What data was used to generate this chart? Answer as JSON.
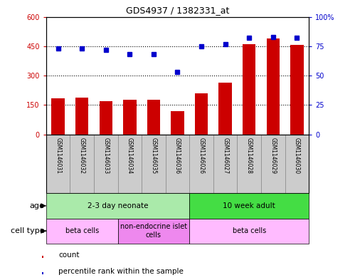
{
  "title": "GDS4937 / 1382331_at",
  "samples": [
    "GSM1146031",
    "GSM1146032",
    "GSM1146033",
    "GSM1146034",
    "GSM1146035",
    "GSM1146036",
    "GSM1146026",
    "GSM1146027",
    "GSM1146028",
    "GSM1146029",
    "GSM1146030"
  ],
  "counts": [
    185,
    188,
    168,
    178,
    175,
    120,
    210,
    265,
    460,
    490,
    455
  ],
  "percentiles": [
    73,
    73,
    72,
    68,
    68,
    53,
    75,
    77,
    82,
    83,
    82
  ],
  "bar_color": "#cc0000",
  "dot_color": "#0000cc",
  "ylim_left": [
    0,
    600
  ],
  "ylim_right": [
    0,
    100
  ],
  "yticks_left": [
    0,
    150,
    300,
    450,
    600
  ],
  "yticks_right": [
    0,
    25,
    50,
    75,
    100
  ],
  "ytick_labels_left": [
    "0",
    "150",
    "300",
    "450",
    "600"
  ],
  "ytick_labels_right": [
    "0",
    "25",
    "50",
    "75",
    "100%"
  ],
  "age_groups": [
    {
      "label": "2-3 day neonate",
      "start": 0,
      "end": 6,
      "color": "#aaeaaa"
    },
    {
      "label": "10 week adult",
      "start": 6,
      "end": 11,
      "color": "#44dd44"
    }
  ],
  "cell_type_groups": [
    {
      "label": "beta cells",
      "start": 0,
      "end": 3,
      "color": "#ffbbff"
    },
    {
      "label": "non-endocrine islet\ncells",
      "start": 3,
      "end": 6,
      "color": "#ee88ee"
    },
    {
      "label": "beta cells",
      "start": 6,
      "end": 11,
      "color": "#ffbbff"
    }
  ],
  "sample_box_color": "#cccccc",
  "sample_box_edge": "#888888",
  "legend_count_color": "#cc0000",
  "legend_dot_color": "#0000cc",
  "legend_count_label": "count",
  "legend_dot_label": "percentile rank within the sample",
  "age_label": "age",
  "cell_type_label": "cell type",
  "background_color": "#ffffff",
  "fig_width": 4.99,
  "fig_height": 3.93,
  "dpi": 100
}
